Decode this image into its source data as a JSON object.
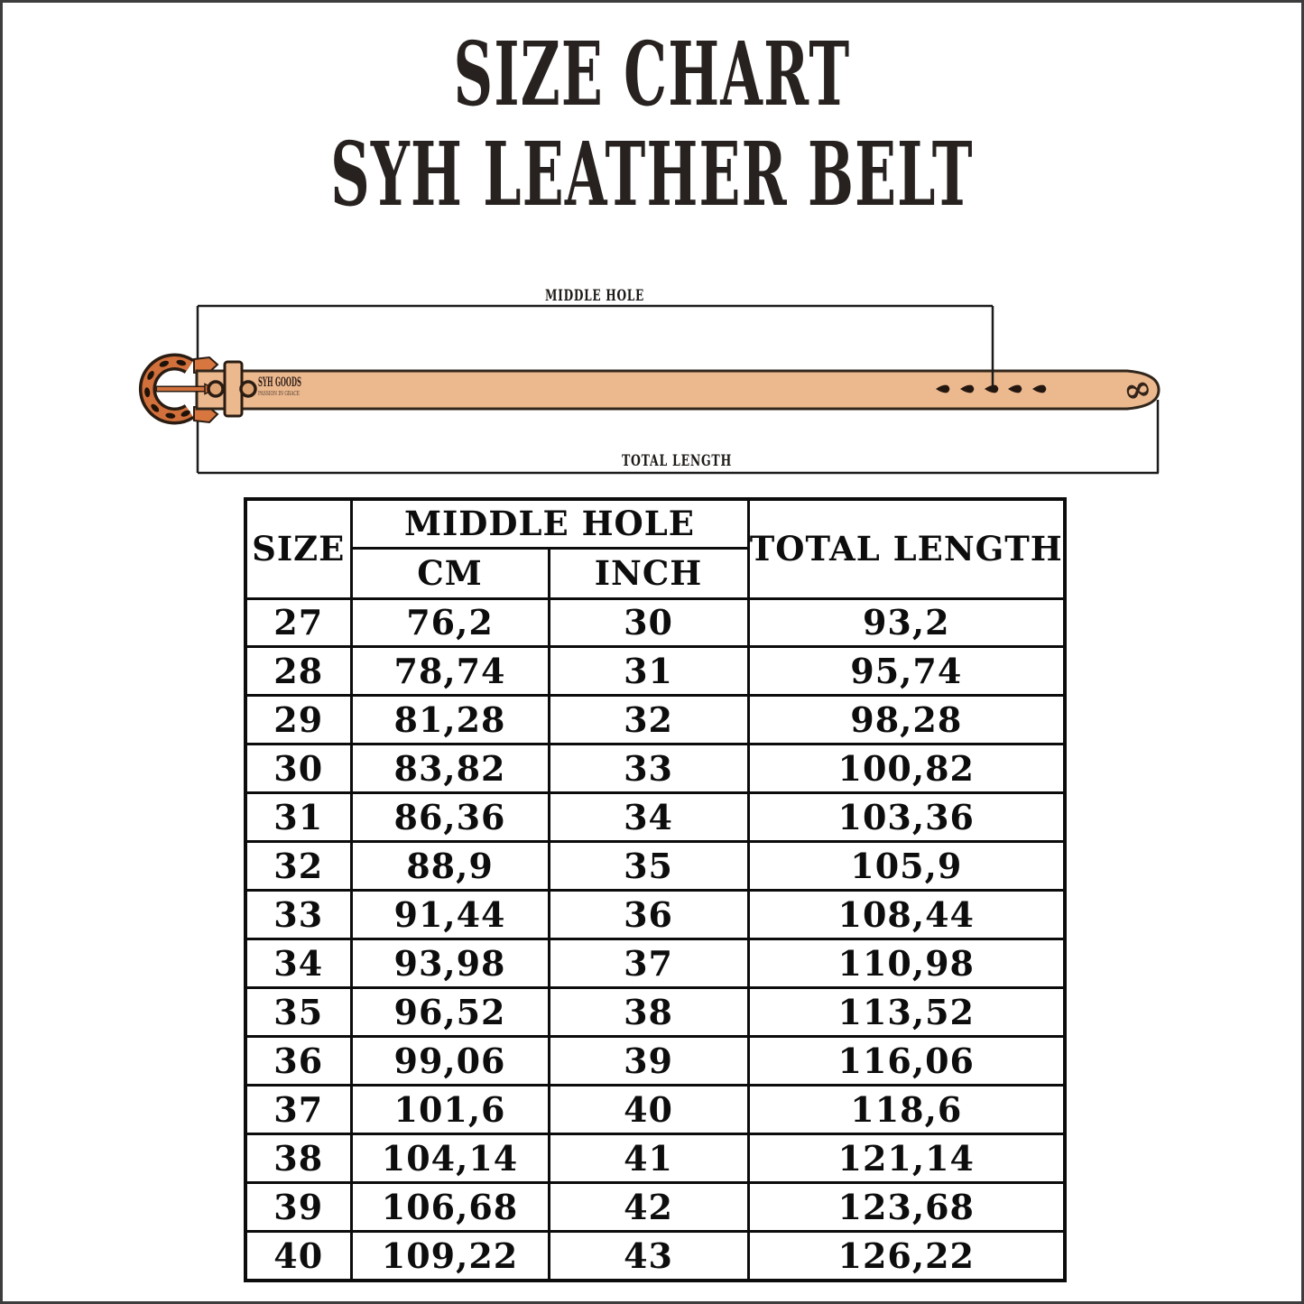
{
  "title": {
    "line1": "SIZE CHART",
    "line2": "SYH LEATHER BELT"
  },
  "diagram": {
    "middle_hole_label": "MIDDLE HOLE",
    "total_length_label": "TOTAL LENGTH",
    "brand": "SYH GOODS",
    "brand_tagline": "PASSION IN GRACE",
    "tip_symbol": "∞",
    "colors": {
      "strap": "#ecb98f",
      "buckle": "#d2703c",
      "outline": "#2a1c12",
      "measure_line": "#1c1c1c"
    }
  },
  "chart_data": {
    "type": "table",
    "title": "SIZE CHART SYH LEATHER BELT",
    "header": {
      "size": "SIZE",
      "middle_hole": "MIDDLE HOLE",
      "cm": "CM",
      "inch": "INCH",
      "total_length": "TOTAL LENGTH"
    },
    "columns": [
      "SIZE",
      "MIDDLE HOLE CM",
      "MIDDLE HOLE INCH",
      "TOTAL LENGTH"
    ],
    "rows": [
      [
        "27",
        "76,2",
        "30",
        "93,2"
      ],
      [
        "28",
        "78,74",
        "31",
        "95,74"
      ],
      [
        "29",
        "81,28",
        "32",
        "98,28"
      ],
      [
        "30",
        "83,82",
        "33",
        "100,82"
      ],
      [
        "31",
        "86,36",
        "34",
        "103,36"
      ],
      [
        "32",
        "88,9",
        "35",
        "105,9"
      ],
      [
        "33",
        "91,44",
        "36",
        "108,44"
      ],
      [
        "34",
        "93,98",
        "37",
        "110,98"
      ],
      [
        "35",
        "96,52",
        "38",
        "113,52"
      ],
      [
        "36",
        "99,06",
        "39",
        "116,06"
      ],
      [
        "37",
        "101,6",
        "40",
        "118,6"
      ],
      [
        "38",
        "104,14",
        "41",
        "121,14"
      ],
      [
        "39",
        "106,68",
        "42",
        "123,68"
      ],
      [
        "40",
        "109,22",
        "43",
        "126,22"
      ]
    ]
  }
}
